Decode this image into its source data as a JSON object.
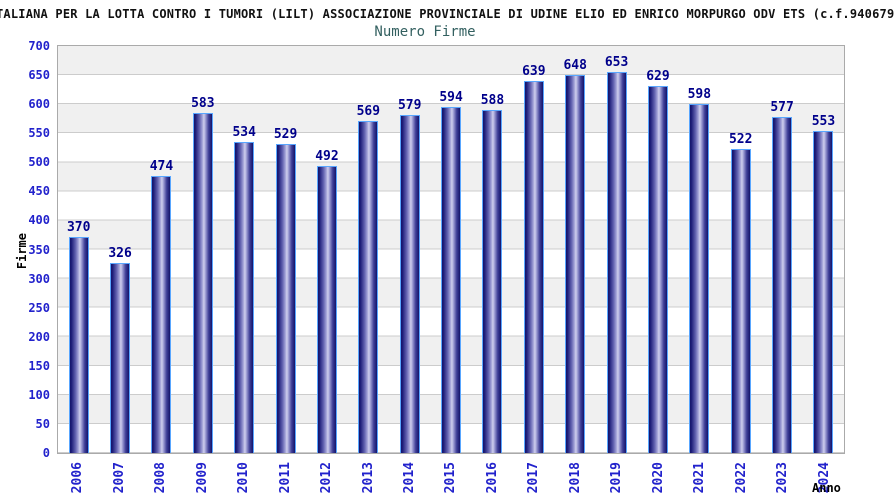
{
  "header": {
    "title": "TALIANA PER LA LOTTA CONTRO I TUMORI (LILT) ASSOCIAZIONE PROVINCIALE DI UDINE ELIO ED ENRICO MORPURGO ODV ETS (c.f.940679",
    "subtitle": "Numero Firme"
  },
  "chart_data": {
    "type": "bar",
    "title": "Numero Firme",
    "xlabel": "Anno",
    "ylabel": "Firme",
    "categories": [
      "2006",
      "2007",
      "2008",
      "2009",
      "2010",
      "2011",
      "2012",
      "2013",
      "2014",
      "2015",
      "2016",
      "2017",
      "2018",
      "2019",
      "2020",
      "2021",
      "2022",
      "2023",
      "2024"
    ],
    "values": [
      370,
      326,
      474,
      583,
      534,
      529,
      492,
      569,
      579,
      594,
      588,
      639,
      648,
      653,
      629,
      598,
      522,
      577,
      553
    ],
    "ylim": [
      0,
      700
    ],
    "ytick_step": 50,
    "grid": true,
    "legend": null,
    "band_colors": [
      "#ffffff",
      "#f0f0f0"
    ]
  },
  "colors": {
    "tick_label": "#2222cc",
    "value_label": "#00008b",
    "subtitle": "#336060",
    "bar_edge": "#58a6ff",
    "bar_dark": "#14146a",
    "bar_light": "#cfcfee",
    "gridline": "#cccccc",
    "plot_frame": "#aaaaaa"
  }
}
